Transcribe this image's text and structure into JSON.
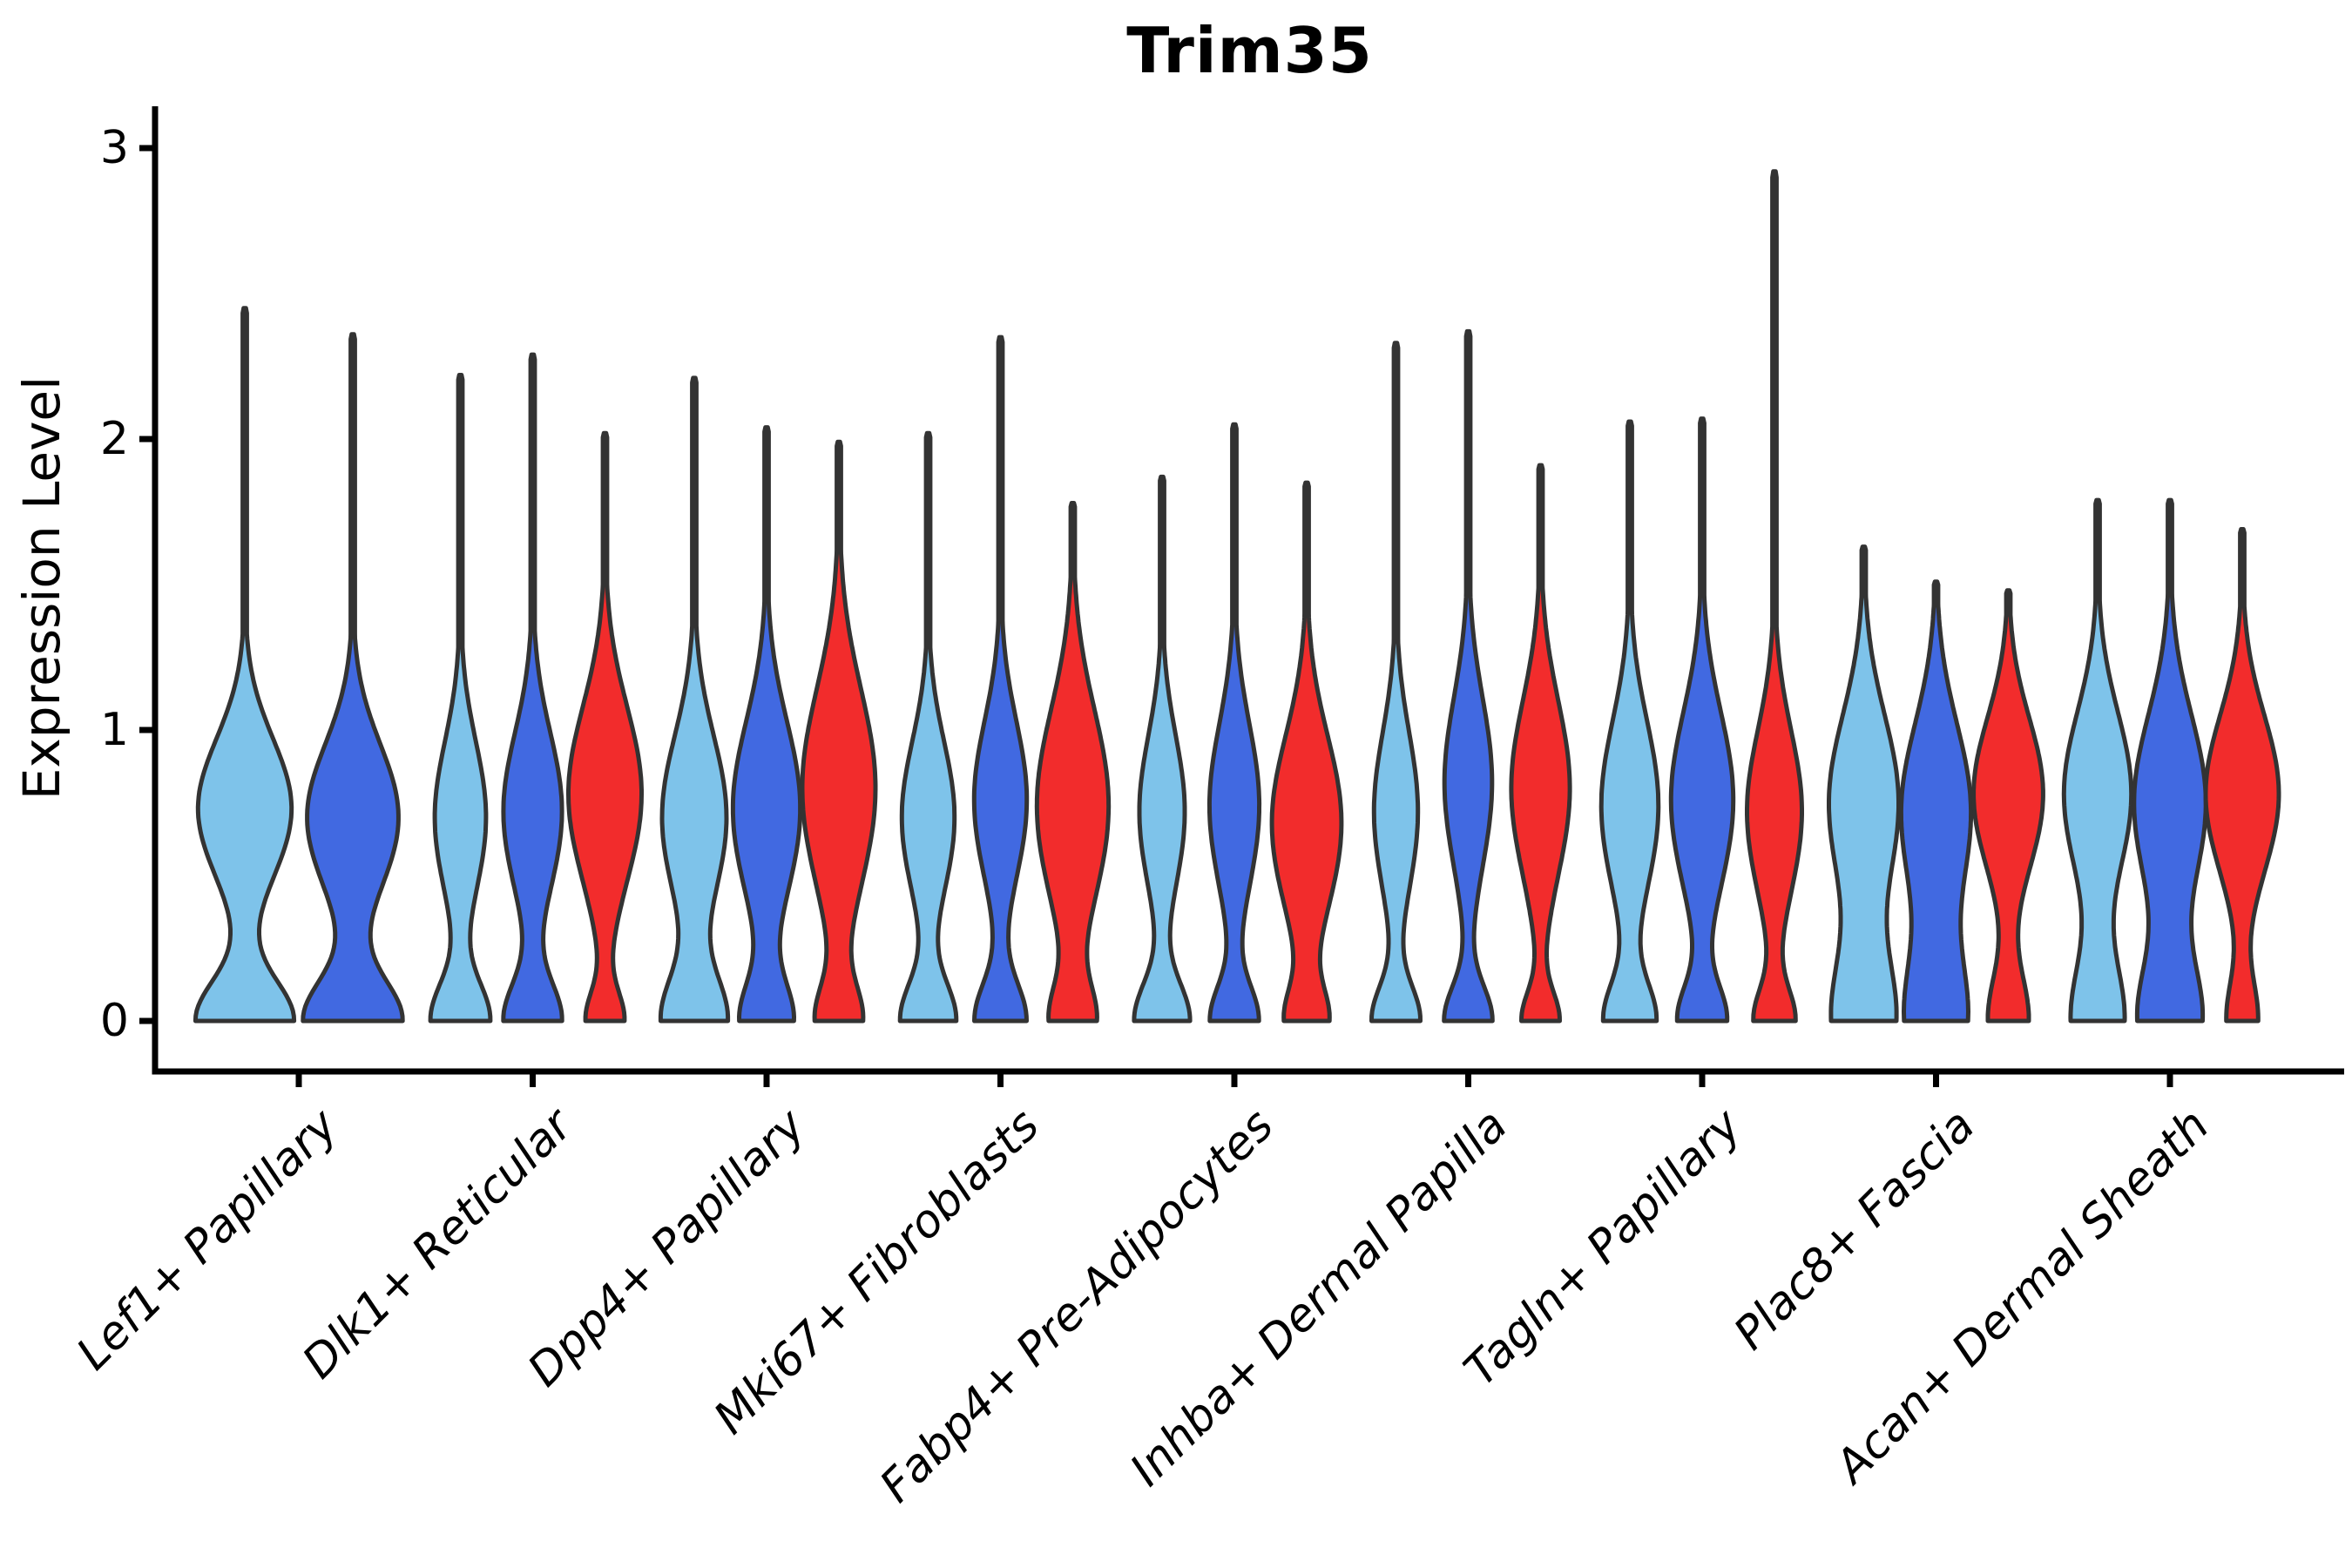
{
  "chart_data": {
    "type": "violin",
    "title": "Trim35",
    "ylabel": "Expression Level",
    "xlabel": "",
    "ylim": [
      0,
      3
    ],
    "ytick_labels": [
      "0",
      "1",
      "2",
      "3"
    ],
    "ytick_values": [
      0,
      1,
      2,
      3
    ],
    "grid": false,
    "legend_position": "none",
    "series_colors": [
      "#7EC3EA",
      "#4169E1",
      "#F22C2C"
    ],
    "outline_color": "#333333",
    "axis_color": "#000000",
    "groups": [
      {
        "category": "Lef1+ Papillary",
        "violins": [
          {
            "color": 0,
            "max": 2.45,
            "shape": [
              [
                0.92,
                0,
                0.14
              ],
              [
                0.88,
                0.73,
                0.24
              ]
            ]
          },
          {
            "color": 1,
            "max": 2.36,
            "shape": [
              [
                0.92,
                0,
                0.14
              ],
              [
                0.86,
                0.7,
                0.25
              ]
            ]
          }
        ]
      },
      {
        "category": "Dlk1+ Reticular",
        "violins": [
          {
            "color": 0,
            "max": 2.22,
            "shape": [
              [
                0.8,
                0,
                0.13
              ],
              [
                0.7,
                0.7,
                0.26
              ]
            ]
          },
          {
            "color": 1,
            "max": 2.29,
            "shape": [
              [
                0.78,
                0,
                0.13
              ],
              [
                0.8,
                0.72,
                0.27
              ]
            ]
          },
          {
            "color": 2,
            "max": 2.02,
            "shape": [
              [
                0.5,
                0,
                0.1
              ],
              [
                1.0,
                0.78,
                0.3
              ]
            ]
          }
        ]
      },
      {
        "category": "Dpp4+ Papillary",
        "violins": [
          {
            "color": 0,
            "max": 2.21,
            "shape": [
              [
                0.88,
                0,
                0.15
              ],
              [
                0.88,
                0.7,
                0.28
              ]
            ]
          },
          {
            "color": 1,
            "max": 2.04,
            "shape": [
              [
                0.7,
                0,
                0.13
              ],
              [
                0.92,
                0.73,
                0.3
              ]
            ]
          },
          {
            "color": 2,
            "max": 1.99,
            "shape": [
              [
                0.6,
                0,
                0.12
              ],
              [
                1.0,
                0.8,
                0.34
              ]
            ]
          }
        ]
      },
      {
        "category": "Mki67+ Fibroblasts",
        "violins": [
          {
            "color": 0,
            "max": 2.02,
            "shape": [
              [
                0.75,
                0,
                0.13
              ],
              [
                0.72,
                0.7,
                0.26
              ]
            ]
          },
          {
            "color": 1,
            "max": 2.35,
            "shape": [
              [
                0.7,
                0,
                0.13
              ],
              [
                0.72,
                0.76,
                0.27
              ]
            ]
          },
          {
            "color": 2,
            "max": 1.78,
            "shape": [
              [
                0.58,
                0,
                0.12
              ],
              [
                0.98,
                0.74,
                0.33
              ]
            ]
          }
        ]
      },
      {
        "category": "Fabp4+ Pre-Adipocytes",
        "violins": [
          {
            "color": 0,
            "max": 1.87,
            "shape": [
              [
                0.75,
                0,
                0.13
              ],
              [
                0.62,
                0.72,
                0.26
              ]
            ]
          },
          {
            "color": 1,
            "max": 2.05,
            "shape": [
              [
                0.65,
                0,
                0.12
              ],
              [
                0.68,
                0.74,
                0.28
              ]
            ]
          },
          {
            "color": 2,
            "max": 1.85,
            "shape": [
              [
                0.55,
                0,
                0.11
              ],
              [
                0.95,
                0.68,
                0.3
              ]
            ]
          }
        ]
      },
      {
        "category": "Inhba+ Dermal Papilla",
        "violins": [
          {
            "color": 0,
            "max": 2.33,
            "shape": [
              [
                0.65,
                0,
                0.12
              ],
              [
                0.6,
                0.72,
                0.27
              ]
            ]
          },
          {
            "color": 1,
            "max": 2.37,
            "shape": [
              [
                0.65,
                0,
                0.12
              ],
              [
                0.65,
                0.82,
                0.29
              ]
            ]
          },
          {
            "color": 2,
            "max": 1.91,
            "shape": [
              [
                0.5,
                0,
                0.1
              ],
              [
                0.8,
                0.8,
                0.3
              ]
            ]
          }
        ]
      },
      {
        "category": "Tagln+ Papillary",
        "violins": [
          {
            "color": 0,
            "max": 2.06,
            "shape": [
              [
                0.7,
                0,
                0.13
              ],
              [
                0.78,
                0.74,
                0.29
              ]
            ]
          },
          {
            "color": 1,
            "max": 2.07,
            "shape": [
              [
                0.65,
                0,
                0.12
              ],
              [
                0.85,
                0.76,
                0.3
              ]
            ]
          },
          {
            "color": 2,
            "max": 2.92,
            "shape": [
              [
                0.55,
                0,
                0.11
              ],
              [
                0.75,
                0.72,
                0.28
              ]
            ]
          }
        ]
      },
      {
        "category": "Plac8+ Fascia",
        "violins": [
          {
            "color": 0,
            "max": 1.63,
            "shape": [
              [
                0.85,
                0,
                0.22
              ],
              [
                0.95,
                0.75,
                0.3
              ]
            ]
          },
          {
            "color": 1,
            "max": 1.51,
            "shape": [
              [
                0.82,
                0,
                0.22
              ],
              [
                0.95,
                0.72,
                0.3
              ]
            ]
          },
          {
            "color": 2,
            "max": 1.48,
            "shape": [
              [
                0.55,
                0,
                0.16
              ],
              [
                0.95,
                0.78,
                0.26
              ]
            ]
          }
        ]
      },
      {
        "category": "Acan+ Dermal Sheath",
        "violins": [
          {
            "color": 0,
            "max": 1.79,
            "shape": [
              [
                0.72,
                0,
                0.2
              ],
              [
                0.92,
                0.78,
                0.28
              ]
            ]
          },
          {
            "color": 1,
            "max": 1.79,
            "shape": [
              [
                0.85,
                0,
                0.2
              ],
              [
                0.98,
                0.75,
                0.3
              ]
            ]
          },
          {
            "color": 2,
            "max": 1.69,
            "shape": [
              [
                0.42,
                0,
                0.14
              ],
              [
                1.0,
                0.78,
                0.27
              ]
            ]
          }
        ]
      }
    ]
  }
}
